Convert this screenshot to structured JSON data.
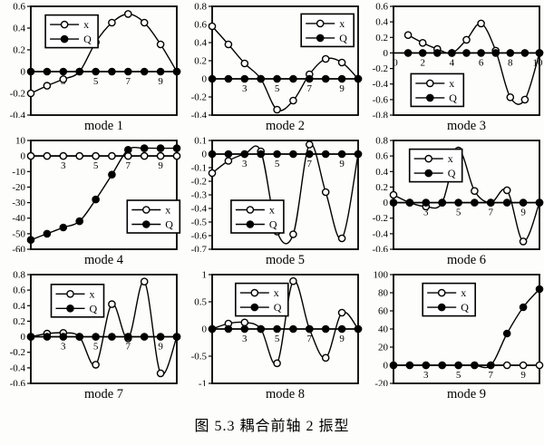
{
  "figure": {
    "caption": "图 5.3 耦合前轴 2 振型"
  },
  "colors": {
    "ink": "#000000",
    "paper": "#fdfdfb",
    "marker_open_fill": "#ffffff"
  },
  "chart_data": [
    {
      "type": "line",
      "title": "mode 1",
      "x": [
        1,
        2,
        3,
        4,
        5,
        6,
        7,
        8,
        9,
        10
      ],
      "xlim": [
        1,
        10
      ],
      "ylim": [
        -0.4,
        0.6
      ],
      "yticks": [
        -0.4,
        -0.2,
        0,
        0.2,
        0.4,
        0.6
      ],
      "xticks": [
        3,
        5,
        7,
        9
      ],
      "legend_pos": [
        0.1,
        0.08
      ],
      "series": [
        {
          "name": "x",
          "marker": "open",
          "values": [
            -0.2,
            -0.13,
            -0.07,
            0,
            0.27,
            0.45,
            0.53,
            0.45,
            0.25,
            0
          ]
        },
        {
          "name": "Q",
          "marker": "filled",
          "values": [
            0,
            0,
            0,
            0,
            0,
            0,
            0,
            0,
            0,
            0
          ]
        }
      ]
    },
    {
      "type": "line",
      "title": "mode 2",
      "x": [
        1,
        2,
        3,
        4,
        5,
        6,
        7,
        8,
        9,
        10
      ],
      "xlim": [
        1,
        10
      ],
      "ylim": [
        -0.4,
        0.8
      ],
      "yticks": [
        -0.4,
        -0.2,
        0,
        0.2,
        0.4,
        0.6,
        0.8
      ],
      "xticks": [
        3,
        5,
        7,
        9
      ],
      "legend_pos": [
        0.61,
        0.07
      ],
      "series": [
        {
          "name": "x",
          "marker": "open",
          "values": [
            0.58,
            0.38,
            0.17,
            0,
            -0.34,
            -0.24,
            0.05,
            0.22,
            0.18,
            0
          ]
        },
        {
          "name": "Q",
          "marker": "filled",
          "values": [
            0,
            0,
            0,
            0,
            0,
            0,
            0,
            0,
            0,
            0
          ]
        }
      ]
    },
    {
      "type": "line",
      "title": "mode 3",
      "x": [
        1,
        2,
        3,
        4,
        5,
        6,
        7,
        8,
        9,
        10
      ],
      "xlim": [
        0,
        10
      ],
      "ylim": [
        -0.8,
        0.6
      ],
      "yticks": [
        -0.8,
        -0.6,
        -0.4,
        -0.2,
        0,
        0.2,
        0.4,
        0.6
      ],
      "xticks": [
        0,
        2,
        4,
        6,
        8,
        10
      ],
      "legend_pos": [
        0.12,
        0.62
      ],
      "series": [
        {
          "name": "x",
          "marker": "open",
          "values": [
            0.23,
            0.13,
            0.05,
            0,
            0.17,
            0.38,
            0.03,
            -0.57,
            -0.6,
            0
          ]
        },
        {
          "name": "Q",
          "marker": "filled",
          "values": [
            0,
            0,
            0,
            0,
            0,
            0,
            0,
            0,
            0,
            0
          ]
        }
      ]
    },
    {
      "type": "line",
      "title": "mode 4",
      "x": [
        1,
        2,
        3,
        4,
        5,
        6,
        7,
        8,
        9,
        10
      ],
      "xlim": [
        1,
        10
      ],
      "ylim": [
        -60,
        10
      ],
      "yticks": [
        -60,
        -50,
        -40,
        -30,
        -20,
        -10,
        0,
        10
      ],
      "xticks": [
        3,
        5,
        7,
        9
      ],
      "legend_pos": [
        0.66,
        0.55
      ],
      "series": [
        {
          "name": "x",
          "marker": "open",
          "values": [
            0,
            0,
            0,
            0,
            0,
            0,
            0,
            0,
            0,
            0
          ]
        },
        {
          "name": "Q",
          "marker": "filled",
          "values": [
            -54,
            -50,
            -46,
            -42,
            -28,
            -12,
            4,
            5,
            5,
            5
          ]
        }
      ]
    },
    {
      "type": "line",
      "title": "mode 5",
      "x": [
        1,
        2,
        3,
        4,
        5,
        6,
        7,
        8,
        9,
        10
      ],
      "xlim": [
        1,
        10
      ],
      "ylim": [
        -0.7,
        0.1
      ],
      "yticks": [
        -0.7,
        -0.6,
        -0.5,
        -0.4,
        -0.3,
        -0.2,
        -0.1,
        0,
        0.1
      ],
      "xticks": [
        3,
        5,
        7,
        9
      ],
      "legend_pos": [
        0.13,
        0.55
      ],
      "series": [
        {
          "name": "x",
          "marker": "open",
          "values": [
            -0.14,
            -0.05,
            0,
            0.02,
            -0.57,
            -0.59,
            0.07,
            -0.28,
            -0.62,
            0
          ]
        },
        {
          "name": "Q",
          "marker": "filled",
          "values": [
            0,
            0,
            0,
            0,
            0,
            0,
            0,
            0,
            0,
            0
          ]
        }
      ]
    },
    {
      "type": "line",
      "title": "mode 6",
      "x": [
        1,
        2,
        3,
        4,
        5,
        6,
        7,
        8,
        9,
        10
      ],
      "xlim": [
        1,
        10
      ],
      "ylim": [
        -0.6,
        0.8
      ],
      "yticks": [
        -0.6,
        -0.4,
        -0.2,
        0,
        0.2,
        0.4,
        0.6,
        0.8
      ],
      "xticks": [
        3,
        5,
        7,
        9
      ],
      "legend_pos": [
        0.11,
        0.08
      ],
      "series": [
        {
          "name": "x",
          "marker": "open",
          "values": [
            0.1,
            0,
            -0.05,
            0,
            0.67,
            0.15,
            0,
            0.16,
            -0.5,
            0
          ]
        },
        {
          "name": "Q",
          "marker": "filled",
          "values": [
            0,
            0,
            0,
            0,
            0,
            0,
            0,
            0,
            0,
            0
          ]
        }
      ]
    },
    {
      "type": "line",
      "title": "mode 7",
      "x": [
        1,
        2,
        3,
        4,
        5,
        6,
        7,
        8,
        9,
        10
      ],
      "xlim": [
        1,
        10
      ],
      "ylim": [
        -0.6,
        0.8
      ],
      "yticks": [
        -0.6,
        -0.4,
        -0.2,
        0,
        0.2,
        0.4,
        0.6,
        0.8
      ],
      "xticks": [
        3,
        5,
        7,
        9
      ],
      "legend_pos": [
        0.14,
        0.09
      ],
      "series": [
        {
          "name": "x",
          "marker": "open",
          "values": [
            0,
            0.04,
            0.05,
            0,
            -0.36,
            0.42,
            -0.02,
            0.71,
            -0.47,
            0
          ]
        },
        {
          "name": "Q",
          "marker": "filled",
          "values": [
            0,
            0,
            0,
            0,
            0,
            0,
            0,
            0,
            0,
            0
          ]
        }
      ]
    },
    {
      "type": "line",
      "title": "mode 8",
      "x": [
        1,
        2,
        3,
        4,
        5,
        6,
        7,
        8,
        9,
        10
      ],
      "xlim": [
        1,
        10
      ],
      "ylim": [
        -1,
        1
      ],
      "yticks": [
        -1,
        -0.5,
        0,
        0.5,
        1
      ],
      "xticks": [
        3,
        5,
        7,
        9
      ],
      "legend_pos": [
        0.16,
        0.08
      ],
      "series": [
        {
          "name": "x",
          "marker": "open",
          "values": [
            0,
            0.1,
            0.12,
            0,
            -0.63,
            0.88,
            0,
            -0.53,
            0.3,
            0
          ]
        },
        {
          "name": "Q",
          "marker": "filled",
          "values": [
            0,
            0,
            0,
            0,
            0,
            0,
            0,
            0,
            0,
            0
          ]
        }
      ]
    },
    {
      "type": "line",
      "title": "mode 9",
      "x": [
        1,
        2,
        3,
        4,
        5,
        6,
        7,
        8,
        9,
        10
      ],
      "xlim": [
        1,
        10
      ],
      "ylim": [
        -20,
        100
      ],
      "yticks": [
        -20,
        0,
        20,
        40,
        60,
        80,
        100
      ],
      "xticks": [
        3,
        5,
        7,
        9
      ],
      "legend_pos": [
        0.2,
        0.08
      ],
      "series": [
        {
          "name": "x",
          "marker": "open",
          "values": [
            0,
            0,
            0,
            0,
            0,
            0,
            0,
            0,
            0,
            0
          ]
        },
        {
          "name": "Q",
          "marker": "filled",
          "values": [
            0,
            0,
            0,
            0,
            0,
            0,
            0,
            35,
            64,
            84
          ]
        }
      ]
    }
  ]
}
